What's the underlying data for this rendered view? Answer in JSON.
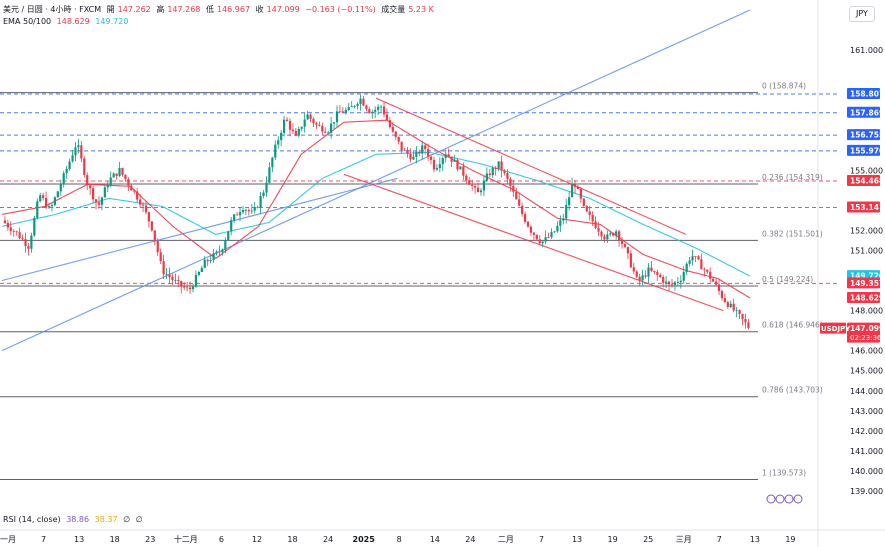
{
  "header": {
    "symbol": "美元 / 日圆 · 4小時 · FXCM",
    "open_label": "開",
    "open": "147.262",
    "high_label": "高",
    "high": "147.268",
    "low_label": "低",
    "low": "146.967",
    "close_label": "收",
    "close": "147.099",
    "change": "−0.163 (−0.11%)",
    "volume_label": "成交量",
    "volume": "5.23 K"
  },
  "ema": {
    "label": "EMA 50/100",
    "v1": "148.629",
    "v2": "149.720"
  },
  "rsi": {
    "label": "RSI (14, close)",
    "v1": "38.86",
    "v2": "38.37",
    "v3": "∅",
    "v4": "∅"
  },
  "currency": "JPY",
  "colors": {
    "up": "#089981",
    "down": "#f23645",
    "ema_fast": "#f23645",
    "ema_slow": "#22c3e6",
    "trend_blue": "#5b8def",
    "trend_red": "#f23645"
  },
  "chart_data": {
    "type": "candlestick",
    "symbol": "USDJPY",
    "timeframe": "4h",
    "y_range": [
      138.3,
      162.0
    ],
    "y_ticks": [
      139,
      140,
      141,
      142,
      143,
      144,
      145,
      146,
      147,
      148,
      149,
      150,
      151,
      152,
      153,
      154,
      155,
      156,
      157,
      158,
      159,
      160,
      161
    ],
    "y_tick_labels": [
      "139.000",
      "140.000",
      "141.000",
      "142.000",
      "143.000",
      "144.000",
      "145.000",
      "146.000",
      "",
      "148.000",
      "",
      "",
      "151.000",
      "152.000",
      "",
      "",
      "155.000",
      "",
      "",
      "",
      "",
      "",
      "161.000"
    ],
    "x_labels": [
      "一月",
      "7",
      "13",
      "18",
      "23",
      "十二月",
      "6",
      "12",
      "18",
      "24",
      "2025",
      "8",
      "14",
      "24",
      "二月",
      "7",
      "13",
      "19",
      "25",
      "三月",
      "7",
      "13",
      "19"
    ],
    "price_path": [
      {
        "t": 0,
        "p": 152.5
      },
      {
        "t": 3,
        "p": 151.8
      },
      {
        "t": 5,
        "p": 151.2
      },
      {
        "t": 7,
        "p": 153.8
      },
      {
        "t": 9,
        "p": 153.0
      },
      {
        "t": 12,
        "p": 155.0
      },
      {
        "t": 14,
        "p": 156.4
      },
      {
        "t": 16,
        "p": 154.3
      },
      {
        "t": 18,
        "p": 153.2
      },
      {
        "t": 20,
        "p": 154.5
      },
      {
        "t": 22,
        "p": 155.0
      },
      {
        "t": 24,
        "p": 154.2
      },
      {
        "t": 26,
        "p": 153.4
      },
      {
        "t": 28,
        "p": 152.2
      },
      {
        "t": 30,
        "p": 150.0
      },
      {
        "t": 33,
        "p": 149.3
      },
      {
        "t": 35,
        "p": 149.0
      },
      {
        "t": 38,
        "p": 150.4
      },
      {
        "t": 41,
        "p": 151.0
      },
      {
        "t": 43,
        "p": 152.5
      },
      {
        "t": 45,
        "p": 153.2
      },
      {
        "t": 47,
        "p": 152.8
      },
      {
        "t": 49,
        "p": 154.0
      },
      {
        "t": 51,
        "p": 156.0
      },
      {
        "t": 53,
        "p": 157.6
      },
      {
        "t": 55,
        "p": 156.6
      },
      {
        "t": 57,
        "p": 157.8
      },
      {
        "t": 59,
        "p": 157.2
      },
      {
        "t": 61,
        "p": 157.0
      },
      {
        "t": 63,
        "p": 157.9
      },
      {
        "t": 65,
        "p": 158.0
      },
      {
        "t": 67,
        "p": 158.6
      },
      {
        "t": 69,
        "p": 157.9
      },
      {
        "t": 71,
        "p": 158.2
      },
      {
        "t": 73,
        "p": 156.9
      },
      {
        "t": 75,
        "p": 156.0
      },
      {
        "t": 77,
        "p": 155.6
      },
      {
        "t": 79,
        "p": 156.2
      },
      {
        "t": 81,
        "p": 155.1
      },
      {
        "t": 83,
        "p": 155.9
      },
      {
        "t": 85,
        "p": 155.3
      },
      {
        "t": 87,
        "p": 154.6
      },
      {
        "t": 89,
        "p": 153.8
      },
      {
        "t": 91,
        "p": 154.8
      },
      {
        "t": 93,
        "p": 155.3
      },
      {
        "t": 95,
        "p": 154.3
      },
      {
        "t": 97,
        "p": 153.0
      },
      {
        "t": 99,
        "p": 152.0
      },
      {
        "t": 101,
        "p": 151.4
      },
      {
        "t": 103,
        "p": 151.8
      },
      {
        "t": 105,
        "p": 152.6
      },
      {
        "t": 107,
        "p": 154.5
      },
      {
        "t": 109,
        "p": 153.0
      },
      {
        "t": 111,
        "p": 152.3
      },
      {
        "t": 113,
        "p": 151.6
      },
      {
        "t": 115,
        "p": 152.0
      },
      {
        "t": 117,
        "p": 150.8
      },
      {
        "t": 119,
        "p": 149.4
      },
      {
        "t": 121,
        "p": 150.0
      },
      {
        "t": 123,
        "p": 149.7
      },
      {
        "t": 125,
        "p": 149.2
      },
      {
        "t": 127,
        "p": 149.6
      },
      {
        "t": 129,
        "p": 150.8
      },
      {
        "t": 131,
        "p": 150.2
      },
      {
        "t": 133,
        "p": 149.5
      },
      {
        "t": 135,
        "p": 148.6
      },
      {
        "t": 137,
        "p": 148.0
      },
      {
        "t": 139,
        "p": 147.4
      },
      {
        "t": 140,
        "p": 147.1
      }
    ],
    "ema_fast_path": [
      {
        "t": 0,
        "p": 152.8
      },
      {
        "t": 8,
        "p": 153.2
      },
      {
        "t": 16,
        "p": 154.3
      },
      {
        "t": 24,
        "p": 154.2
      },
      {
        "t": 32,
        "p": 152.2
      },
      {
        "t": 40,
        "p": 150.6
      },
      {
        "t": 48,
        "p": 152.2
      },
      {
        "t": 56,
        "p": 155.8
      },
      {
        "t": 64,
        "p": 157.4
      },
      {
        "t": 72,
        "p": 157.5
      },
      {
        "t": 80,
        "p": 156.2
      },
      {
        "t": 88,
        "p": 155.0
      },
      {
        "t": 96,
        "p": 154.0
      },
      {
        "t": 104,
        "p": 152.6
      },
      {
        "t": 112,
        "p": 152.3
      },
      {
        "t": 120,
        "p": 150.8
      },
      {
        "t": 128,
        "p": 150.0
      },
      {
        "t": 134,
        "p": 149.6
      },
      {
        "t": 140,
        "p": 148.629
      }
    ],
    "ema_slow_path": [
      {
        "t": 0,
        "p": 152.2
      },
      {
        "t": 10,
        "p": 152.8
      },
      {
        "t": 20,
        "p": 153.6
      },
      {
        "t": 30,
        "p": 153.2
      },
      {
        "t": 40,
        "p": 151.8
      },
      {
        "t": 50,
        "p": 152.4
      },
      {
        "t": 60,
        "p": 154.6
      },
      {
        "t": 70,
        "p": 155.8
      },
      {
        "t": 80,
        "p": 155.9
      },
      {
        "t": 90,
        "p": 155.3
      },
      {
        "t": 100,
        "p": 154.5
      },
      {
        "t": 110,
        "p": 153.6
      },
      {
        "t": 120,
        "p": 152.3
      },
      {
        "t": 130,
        "p": 151.1
      },
      {
        "t": 140,
        "p": 149.72
      }
    ],
    "fib_levels": [
      {
        "ratio": "0",
        "value": 158.874,
        "label": "0 (158.874)"
      },
      {
        "ratio": "0.236",
        "value": 154.319,
        "label": "0.236 (154.319)"
      },
      {
        "ratio": "0.382",
        "value": 151.501,
        "label": "0.382 (151.501)"
      },
      {
        "ratio": "0.5",
        "value": 149.224,
        "label": "0.5 (149.224)"
      },
      {
        "ratio": "0.618",
        "value": 146.946,
        "label": "0.618 (146.946)"
      },
      {
        "ratio": "0.786",
        "value": 143.703,
        "label": "0.786 (143.703)"
      },
      {
        "ratio": "1",
        "value": 139.573,
        "label": "1 (139.573)"
      }
    ],
    "horizontal_lines": [
      {
        "value": 158.807,
        "style": "dashed",
        "color": "#2962ff"
      },
      {
        "value": 157.869,
        "style": "dashed",
        "color": "#2962ff"
      },
      {
        "value": 156.755,
        "style": "dashed",
        "color": "#2962ff"
      },
      {
        "value": 155.97,
        "style": "dashed",
        "color": "#2962ff"
      },
      {
        "value": 154.468,
        "style": "dashed",
        "color": "#f23645"
      },
      {
        "value": 153.141,
        "style": "dashed",
        "color": "#f23645"
      },
      {
        "value": 149.357,
        "style": "dashed",
        "color": "#f23645"
      }
    ],
    "trend_lines": [
      {
        "color": "#5b8def",
        "x1": 0,
        "y1": 146.0,
        "x2": 140,
        "y2": 163.0
      },
      {
        "color": "#5b8def",
        "x1": 0,
        "y1": 149.5,
        "x2": 74,
        "y2": 154.6
      },
      {
        "color": "#f23645",
        "x1": 70,
        "y1": 158.6,
        "x2": 128,
        "y2": 151.8
      },
      {
        "color": "#f23645",
        "x1": 64,
        "y1": 154.8,
        "x2": 135,
        "y2": 148.0
      }
    ],
    "price_badges": [
      {
        "value": 158.807,
        "label": "158.807",
        "color": "#2962ff"
      },
      {
        "value": 157.869,
        "label": "157.869",
        "color": "#2962ff"
      },
      {
        "value": 156.755,
        "label": "156.755",
        "color": "#2962ff"
      },
      {
        "value": 155.97,
        "label": "155.970",
        "color": "#2962ff"
      },
      {
        "value": 154.468,
        "label": "154.468",
        "color": "#f23645"
      },
      {
        "value": 153.141,
        "label": "153.141",
        "color": "#f23645"
      },
      {
        "value": 149.72,
        "label": "149.720",
        "color": "#22c3e6"
      },
      {
        "value": 149.357,
        "label": "149.357",
        "color": "#f23645"
      },
      {
        "value": 148.629,
        "label": "148.629",
        "color": "#f23645"
      },
      {
        "value": 147.099,
        "label": "147.099",
        "sub": "02:23:36",
        "color": "#f23645"
      }
    ],
    "symbol_tag": "USDJPY"
  }
}
